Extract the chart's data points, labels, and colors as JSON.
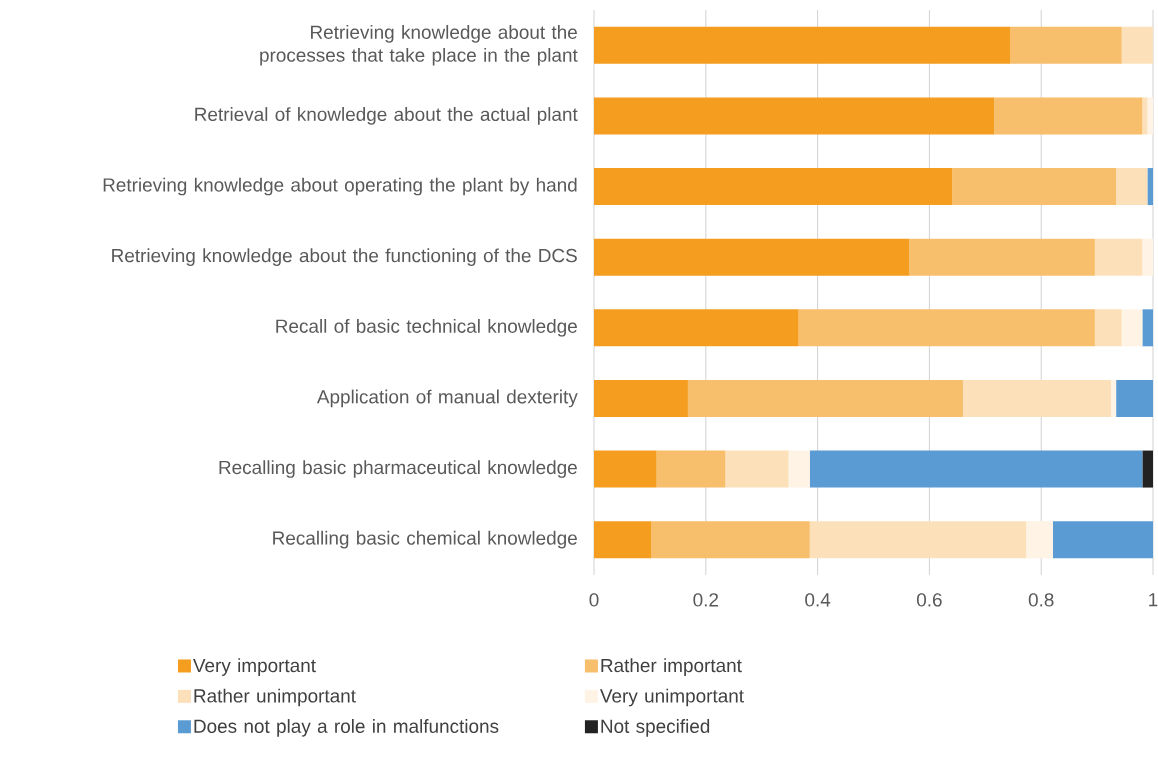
{
  "chart_data": {
    "type": "bar",
    "orientation": "horizontal",
    "stacked": true,
    "categories": [
      "Retrieving knowledge about the processes that take place in the plant",
      "Retrieval of knowledge about the actual plant",
      "Retrieving knowledge about operating the plant by hand",
      "Retrieving knowledge about the functioning of the DCS",
      "Recall of basic technical knowledge",
      "Application of manual dexterity",
      "Recalling basic pharmaceutical knowledge",
      "Recalling basic chemical knowledge"
    ],
    "series": [
      {
        "name": "Very important",
        "color": "#f49d1f",
        "values": [
          0.745,
          0.716,
          0.641,
          0.564,
          0.366,
          0.168,
          0.112,
          0.102
        ]
      },
      {
        "name": "Rather important",
        "color": "#f7be6b",
        "values": [
          0.199,
          0.265,
          0.293,
          0.332,
          0.53,
          0.492,
          0.123,
          0.284
        ]
      },
      {
        "name": "Rather unimportant",
        "color": "#fce0b9",
        "values": [
          0.056,
          0.009,
          0.056,
          0.085,
          0.048,
          0.265,
          0.113,
          0.387
        ]
      },
      {
        "name": "Very unimportant",
        "color": "#fef3e4",
        "values": [
          0,
          0.01,
          0,
          0.019,
          0.037,
          0.009,
          0.038,
          0.048
        ]
      },
      {
        "name": "Does not play a role in malfunctions",
        "color": "#5b9bd3",
        "values": [
          0,
          0,
          0.01,
          0,
          0.019,
          0.066,
          0.595,
          0.179
        ]
      },
      {
        "name": "Not specified",
        "color": "#222222",
        "values": [
          0,
          0,
          0,
          0,
          0,
          0,
          0.019,
          0
        ]
      }
    ],
    "xlim": [
      0,
      1
    ],
    "xticks": [
      0,
      0.2,
      0.4,
      0.6,
      0.8,
      1
    ],
    "grid": "x",
    "legend": "bottom"
  }
}
